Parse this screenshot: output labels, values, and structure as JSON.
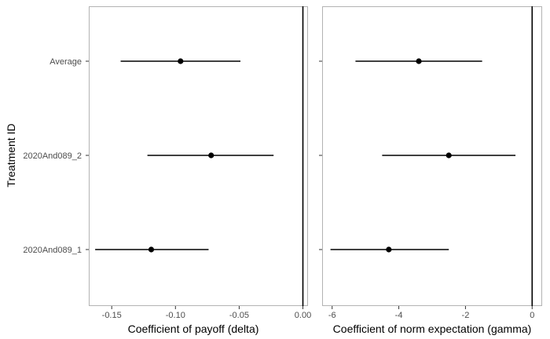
{
  "ylabel": "Treatment ID",
  "categories": [
    "Average",
    "2020And089_2",
    "2020And089_1"
  ],
  "colors": {
    "panel_border": "#b3b3b3",
    "tick": "#333333",
    "mark": "#000000",
    "tick_text": "#4d4d4d"
  },
  "chart_data": [
    {
      "type": "scatter",
      "title": "",
      "xlabel": "Coefficient of payoff (delta)",
      "xlim": [
        -0.168,
        0.004
      ],
      "xticks": [
        -0.15,
        -0.1,
        -0.05,
        0.0
      ],
      "xtick_labels": [
        "-0.15",
        "-0.10",
        "-0.05",
        "0.00"
      ],
      "reference_line": 0,
      "points": [
        {
          "category": "Average",
          "estimate": -0.096,
          "lower": -0.143,
          "upper": -0.049
        },
        {
          "category": "2020And089_2",
          "estimate": -0.072,
          "lower": -0.122,
          "upper": -0.023
        },
        {
          "category": "2020And089_1",
          "estimate": -0.119,
          "lower": -0.163,
          "upper": -0.074
        }
      ]
    },
    {
      "type": "scatter",
      "title": "",
      "xlabel": "Coefficient of norm expectation (gamma)",
      "xlim": [
        -6.3,
        0.3
      ],
      "xticks": [
        -6,
        -4,
        -2,
        0
      ],
      "xtick_labels": [
        "-6",
        "-4",
        "-2",
        "0"
      ],
      "reference_line": 0,
      "points": [
        {
          "category": "Average",
          "estimate": -3.4,
          "lower": -5.3,
          "upper": -1.5
        },
        {
          "category": "2020And089_2",
          "estimate": -2.5,
          "lower": -4.5,
          "upper": -0.5
        },
        {
          "category": "2020And089_1",
          "estimate": -4.3,
          "lower": -6.05,
          "upper": -2.5
        }
      ]
    }
  ]
}
